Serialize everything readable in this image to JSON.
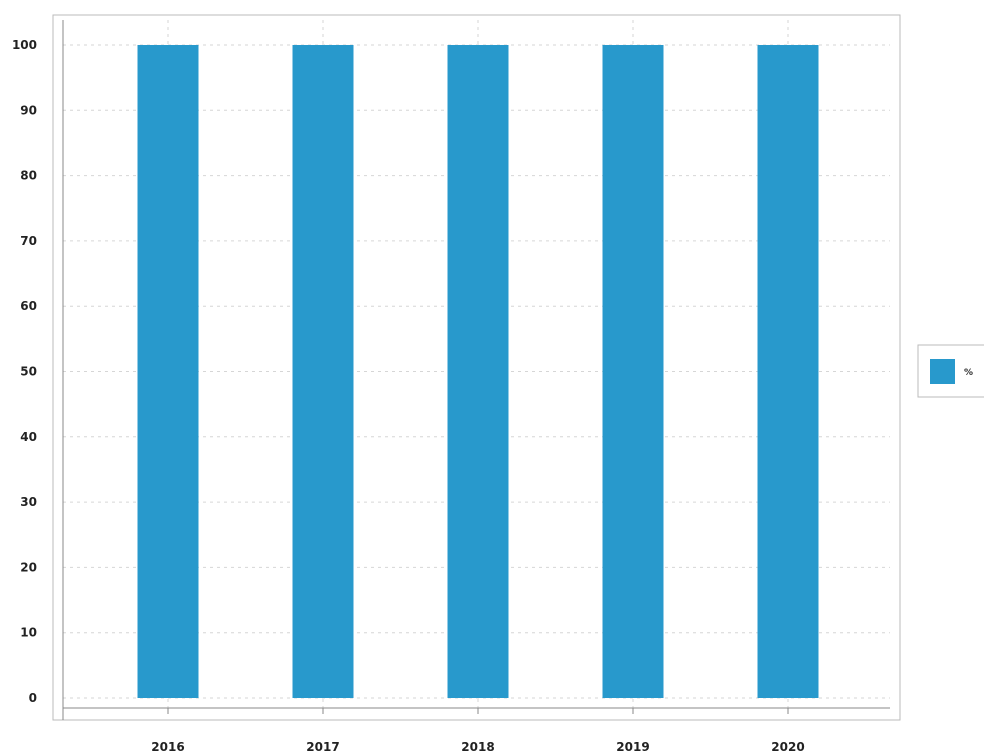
{
  "chart_data": {
    "type": "bar",
    "title": "",
    "xlabel": "",
    "ylabel": "",
    "categories": [
      "2016",
      "2017",
      "2018",
      "2019",
      "2020"
    ],
    "series": [
      {
        "name": "%",
        "values": [
          100,
          100,
          100,
          100,
          100
        ],
        "color": "#2899cc"
      }
    ],
    "ylim": [
      0,
      100
    ],
    "yticks": [
      0,
      10,
      20,
      30,
      40,
      50,
      60,
      70,
      80,
      90,
      100
    ],
    "grid": true,
    "legend_position": "right"
  }
}
